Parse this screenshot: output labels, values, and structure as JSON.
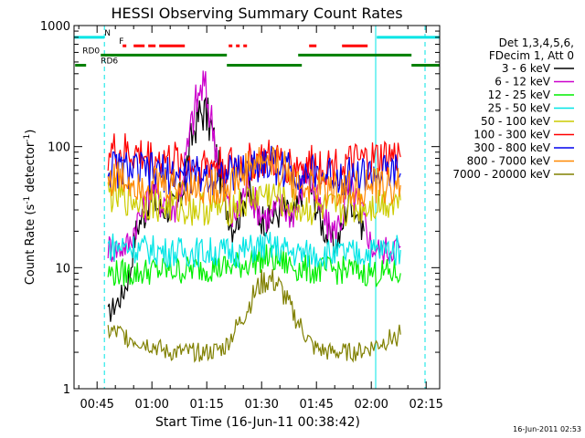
{
  "chart_data": {
    "type": "line",
    "title": "HESSI Observing Summary Count Rates",
    "xlabel": "Start Time (16-Jun-11 00:38:42)",
    "ylabel": "Count Rate (s⁻¹ detector⁻¹)",
    "ylabel_parts": {
      "a": "Count Rate (s",
      "sup1": "-1",
      "b": " detector",
      "sup2": "-1",
      "c": ")"
    },
    "y_scale": "log",
    "ylim": [
      1,
      1000
    ],
    "xlim_minutes": [
      38.7,
      138.7
    ],
    "x_ticks": [
      {
        "minute": 45,
        "label": "00:45"
      },
      {
        "minute": 60,
        "label": "01:00"
      },
      {
        "minute": 75,
        "label": "01:15"
      },
      {
        "minute": 90,
        "label": "01:30"
      },
      {
        "minute": 105,
        "label": "01:45"
      },
      {
        "minute": 120,
        "label": "02:00"
      },
      {
        "minute": 135,
        "label": "02:15"
      }
    ],
    "y_ticks": [
      {
        "value": 1,
        "label": "1"
      },
      {
        "value": 10,
        "label": "10"
      },
      {
        "value": 100,
        "label": "100"
      },
      {
        "value": 1000,
        "label": "1000"
      }
    ],
    "legend_title": [
      "Det 1,3,4,5,6,",
      "FDecim 1, Att 0"
    ],
    "series": [
      {
        "name": "3 - 6 keV",
        "color": "#000000",
        "x": [
          48,
          50,
          52,
          54,
          56,
          58,
          60,
          62,
          64,
          66,
          68,
          70,
          72,
          74,
          76,
          78,
          80,
          82,
          84,
          86,
          88,
          90,
          92,
          94,
          96,
          98,
          100,
          102,
          104,
          106,
          108,
          110,
          112,
          114,
          116,
          118
        ],
        "y": [
          4,
          5,
          6,
          9,
          22,
          28,
          40,
          30,
          32,
          30,
          38,
          80,
          160,
          200,
          150,
          70,
          35,
          22,
          28,
          45,
          30,
          26,
          24,
          28,
          30,
          25,
          30,
          60,
          40,
          25,
          18,
          15,
          20,
          40,
          30,
          20
        ]
      },
      {
        "name": "6 - 12 keV",
        "color": "#cc00cc",
        "x": [
          48,
          50,
          52,
          54,
          56,
          58,
          60,
          62,
          64,
          66,
          68,
          70,
          72,
          74,
          76,
          78,
          80,
          82,
          84,
          86,
          88,
          90,
          92,
          94,
          96,
          98,
          100,
          102,
          104,
          106,
          108,
          110,
          112,
          114,
          116,
          118,
          120,
          122,
          124,
          126,
          128
        ],
        "y": [
          15,
          14,
          15,
          16,
          25,
          30,
          45,
          35,
          38,
          30,
          45,
          100,
          220,
          320,
          180,
          80,
          40,
          25,
          30,
          50,
          35,
          28,
          26,
          30,
          32,
          28,
          32,
          65,
          45,
          30,
          22,
          20,
          26,
          45,
          35,
          25,
          15,
          14,
          14,
          15,
          15
        ]
      },
      {
        "name": "12 - 25 keV",
        "color": "#00ee00",
        "x": [
          48,
          52,
          56,
          60,
          64,
          68,
          72,
          76,
          80,
          84,
          86,
          88,
          90,
          92,
          94,
          96,
          98,
          100,
          104,
          108,
          112,
          116,
          120,
          124,
          128
        ],
        "y": [
          9,
          9,
          9,
          9.5,
          9.5,
          9.5,
          9.8,
          10,
          10,
          10.5,
          11,
          11.5,
          12,
          12,
          11.5,
          11,
          10.5,
          10,
          9.5,
          9.5,
          9.5,
          9.5,
          9,
          9,
          9
        ]
      },
      {
        "name": "25 - 50 keV",
        "color": "#00e5e5",
        "x": [
          48,
          52,
          56,
          60,
          64,
          68,
          72,
          76,
          80,
          84,
          86,
          88,
          90,
          92,
          94,
          96,
          98,
          100,
          104,
          108,
          112,
          116,
          120,
          124,
          128
        ],
        "y": [
          15,
          15,
          14.5,
          14,
          13.5,
          13.5,
          13.5,
          13.5,
          13.5,
          13.5,
          14,
          14.5,
          15,
          15,
          14.5,
          14,
          13.5,
          13,
          13,
          13,
          13,
          13,
          13.5,
          14,
          14
        ]
      },
      {
        "name": "50 - 100 keV",
        "color": "#cccc00",
        "x": [
          48,
          52,
          56,
          60,
          64,
          68,
          72,
          76,
          80,
          84,
          86,
          88,
          90,
          92,
          94,
          96,
          98,
          100,
          104,
          108,
          112,
          116,
          120,
          124,
          128
        ],
        "y": [
          40,
          38,
          36,
          34,
          32,
          31,
          31,
          31,
          31,
          33,
          35,
          38,
          40,
          40,
          38,
          35,
          33,
          31,
          30,
          30,
          30,
          31,
          33,
          35,
          36
        ]
      },
      {
        "name": "100 - 300 keV",
        "color": "#ff0000",
        "x": [
          48,
          52,
          56,
          60,
          64,
          68,
          72,
          76,
          80,
          84,
          86,
          88,
          90,
          92,
          94,
          96,
          98,
          100,
          104,
          108,
          112,
          116,
          120,
          124,
          128
        ],
        "y": [
          90,
          88,
          85,
          80,
          77,
          74,
          72,
          71,
          70,
          70,
          72,
          75,
          77,
          77,
          75,
          72,
          71,
          70,
          70,
          70,
          70,
          72,
          76,
          80,
          82
        ]
      },
      {
        "name": "300 - 800 keV",
        "color": "#0000ee",
        "x": [
          48,
          52,
          56,
          60,
          64,
          68,
          72,
          76,
          80,
          84,
          86,
          88,
          90,
          92,
          94,
          96,
          98,
          100,
          104,
          108,
          112,
          116,
          120,
          124,
          128
        ],
        "y": [
          66,
          65,
          63,
          61,
          59,
          58,
          58,
          58,
          58,
          62,
          66,
          70,
          73,
          73,
          70,
          66,
          62,
          60,
          58,
          58,
          58,
          58,
          58,
          59,
          60
        ]
      },
      {
        "name": "800 - 7000 keV",
        "color": "#ff8800",
        "x": [
          48,
          52,
          56,
          60,
          64,
          68,
          72,
          76,
          80,
          84,
          86,
          88,
          90,
          92,
          94,
          96,
          98,
          100,
          104,
          108,
          112,
          116,
          120,
          124,
          128
        ],
        "y": [
          55,
          54,
          52,
          50,
          48,
          47,
          46,
          46,
          46,
          55,
          65,
          72,
          76,
          76,
          72,
          65,
          55,
          48,
          45,
          45,
          45,
          45,
          46,
          47,
          48
        ]
      },
      {
        "name": "7000 - 20000 keV",
        "color": "#808000",
        "x": [
          48,
          52,
          56,
          60,
          64,
          68,
          72,
          76,
          80,
          82,
          84,
          86,
          88,
          90,
          92,
          94,
          96,
          98,
          100,
          102,
          104,
          108,
          112,
          116,
          120,
          124,
          128
        ],
        "y": [
          3,
          2.8,
          2.5,
          2.3,
          2,
          2,
          2,
          2,
          2.2,
          2.8,
          3.5,
          4.5,
          6,
          7.5,
          8,
          7.5,
          6,
          4.5,
          3.5,
          2.8,
          2.2,
          2,
          2,
          2,
          2.2,
          2.5,
          2.8
        ]
      }
    ],
    "segments": [
      {
        "label": "N",
        "color": "#00e5e5",
        "y": 800,
        "label_at": 47,
        "ranges": [
          [
            38.7,
            47
          ],
          [
            121.5,
            138.7
          ]
        ]
      },
      {
        "label": "F",
        "color": "#ff0000",
        "y": 680,
        "label_at": 51,
        "ranges": [
          [
            52,
            53
          ],
          [
            55,
            58
          ],
          [
            59,
            61
          ],
          [
            62,
            69
          ],
          [
            81,
            82
          ],
          [
            83,
            84
          ],
          [
            85,
            86
          ],
          [
            103,
            105
          ],
          [
            112,
            119
          ]
        ]
      },
      {
        "label": "RD0",
        "color": "#008000",
        "y": 570,
        "label_at": 41,
        "ranges": [
          [
            46,
            80.5
          ],
          [
            100,
            131
          ]
        ]
      },
      {
        "label": "RD6",
        "color": "#008000",
        "y": 470,
        "label_at": 46,
        "ranges": [
          [
            39,
            42
          ],
          [
            80.5,
            101
          ],
          [
            131,
            138.7
          ]
        ]
      }
    ],
    "markers": {
      "solid": [
        121.2
      ],
      "dashed": [
        47,
        134.7
      ]
    }
  },
  "footer_timestamp": "16-Jun-2011 02:53"
}
